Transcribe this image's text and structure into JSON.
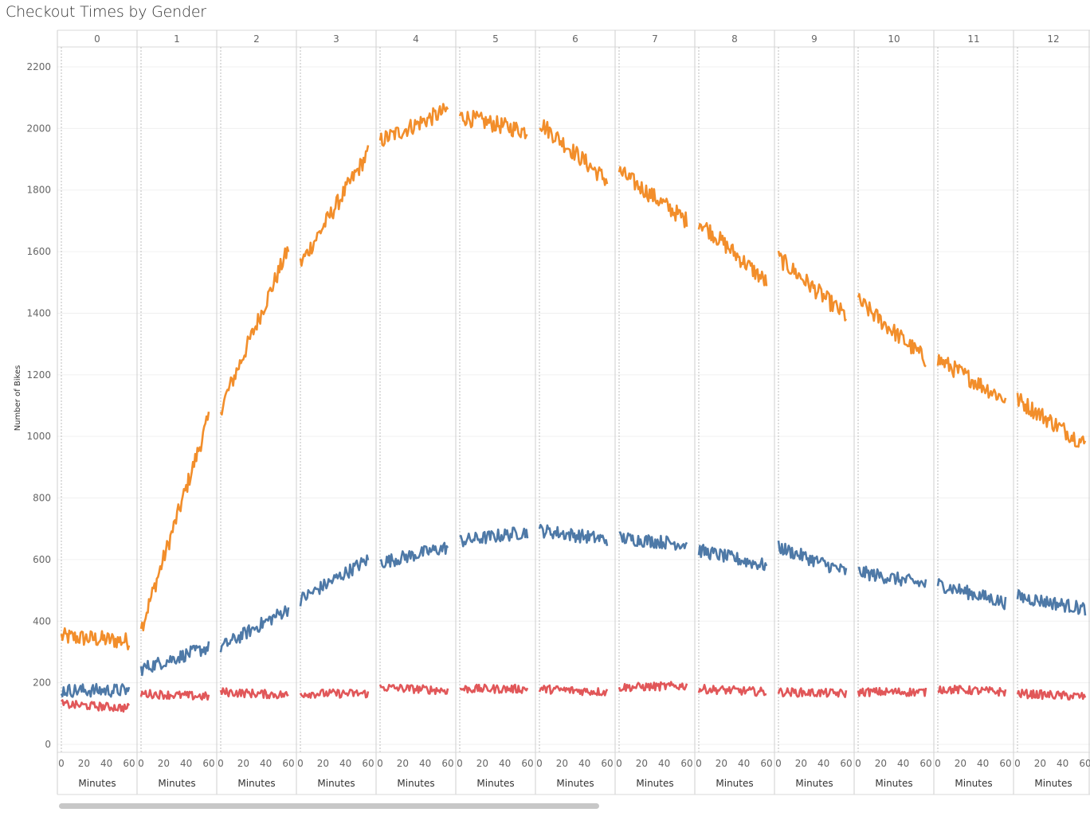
{
  "title": "Checkout Times by Gender",
  "chart_data": {
    "type": "line",
    "title": "Checkout Times by Gender",
    "ylabel": "Number of Bikes",
    "xlabel": "Minutes",
    "facet_labels": [
      "0",
      "1",
      "2",
      "3",
      "4",
      "5",
      "6",
      "7",
      "8",
      "9",
      "10",
      "11",
      "12"
    ],
    "x_ticks": [
      "0",
      "20",
      "40",
      "60"
    ],
    "y_ticks": [
      "0",
      "200",
      "400",
      "600",
      "800",
      "1000",
      "1200",
      "1400",
      "1600",
      "1800",
      "2000",
      "2200"
    ],
    "ylim": [
      0,
      2200
    ],
    "xlim": [
      0,
      60
    ],
    "grid": true,
    "series": [
      {
        "color": "#F28E2B",
        "start": [
          350,
          375,
          1090,
          1560,
          1960,
          2040,
          2020,
          1860,
          1700,
          1580,
          1440,
          1250,
          1120
        ],
        "end": [
          335,
          1060,
          1610,
          1920,
          2060,
          1990,
          1830,
          1700,
          1500,
          1390,
          1250,
          1120,
          975
        ],
        "noise": 28
      },
      {
        "color": "#4E79A7",
        "start": [
          175,
          245,
          315,
          470,
          590,
          660,
          695,
          670,
          630,
          640,
          560,
          520,
          480
        ],
        "end": [
          175,
          315,
          440,
          600,
          640,
          690,
          665,
          650,
          580,
          560,
          520,
          460,
          440
        ],
        "noise": 22
      },
      {
        "color": "#E15759",
        "start": [
          130,
          165,
          170,
          165,
          185,
          180,
          180,
          185,
          180,
          170,
          170,
          180,
          165
        ],
        "end": [
          118,
          155,
          160,
          165,
          175,
          180,
          170,
          190,
          170,
          165,
          170,
          170,
          155
        ],
        "noise": 14
      }
    ]
  }
}
